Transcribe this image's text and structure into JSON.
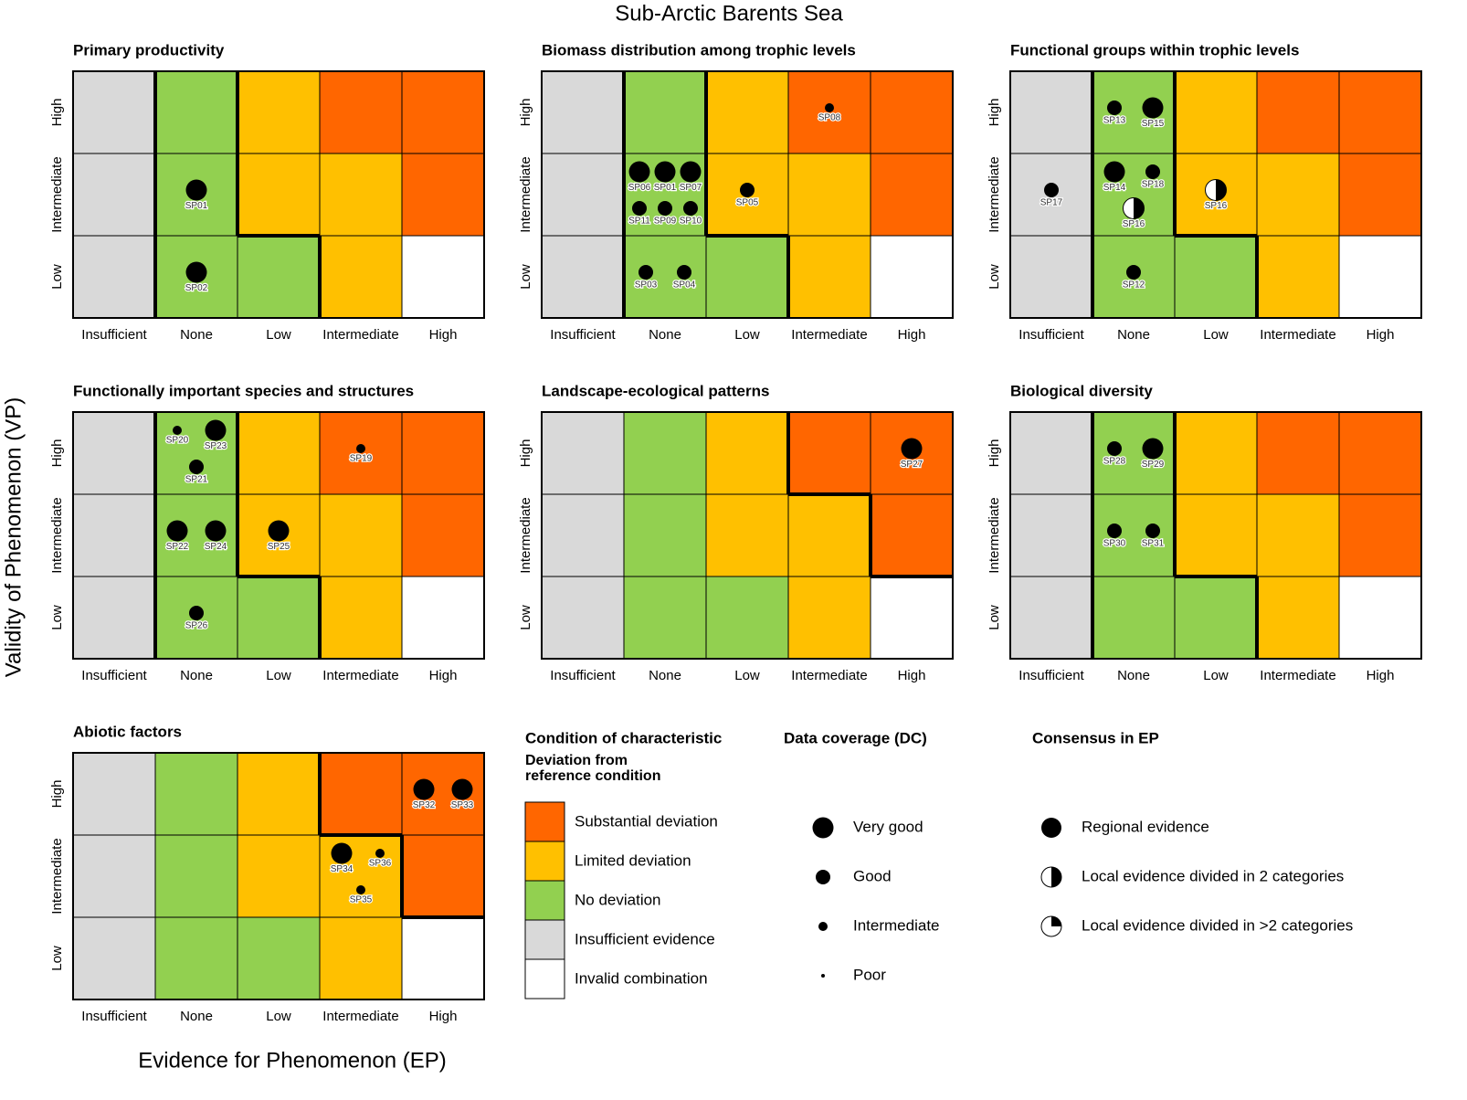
{
  "title": "Sub-Arctic Barents Sea",
  "x_axis_label": "Evidence for Phenomenon (EP)",
  "y_axis_label": "Validity of Phenomenon (VP)",
  "ep_categories": [
    "Insufficient",
    "None",
    "Low",
    "Intermediate",
    "High"
  ],
  "vp_categories": [
    "High",
    "Intermediate",
    "Low"
  ],
  "condition_matrix": [
    [
      "Insufficient evidence",
      "No deviation",
      "Limited deviation",
      "Substantial deviation",
      "Substantial deviation"
    ],
    [
      "Insufficient evidence",
      "No deviation",
      "Limited deviation",
      "Limited deviation",
      "Substantial deviation"
    ],
    [
      "Insufficient evidence",
      "No deviation",
      "No deviation",
      "Limited deviation",
      "Invalid combination"
    ]
  ],
  "legend": {
    "condition": {
      "title": "Condition of characteristic",
      "subtitle": [
        "Deviation from",
        "reference condition"
      ],
      "items": [
        {
          "label": "Substantial deviation",
          "color": "#ff6600"
        },
        {
          "label": "Limited deviation",
          "color": "#ffc000"
        },
        {
          "label": "No deviation",
          "color": "#92d050"
        },
        {
          "label": "Insufficient evidence",
          "color": "#d9d9d9"
        },
        {
          "label": "Invalid combination",
          "color": "#ffffff"
        }
      ]
    },
    "coverage": {
      "title": "Data coverage (DC)",
      "items": [
        {
          "label": "Very good"
        },
        {
          "label": "Good"
        },
        {
          "label": "Intermediate"
        },
        {
          "label": "Poor"
        }
      ]
    },
    "consensus": {
      "title": "Consensus in EP",
      "items": [
        {
          "label": "Regional evidence"
        },
        {
          "label": "Local evidence divided in 2 categories"
        },
        {
          "label": "Local evidence divided in >2 categories"
        }
      ]
    }
  },
  "panels": [
    {
      "title": "Primary productivity",
      "highlight": "No deviation",
      "points": [
        {
          "label": "SP01",
          "ep": "None",
          "vp": "Intermediate",
          "coverage": "Very good",
          "consensus": "Regional evidence"
        },
        {
          "label": "SP02",
          "ep": "None",
          "vp": "Low",
          "coverage": "Very good",
          "consensus": "Regional evidence"
        }
      ]
    },
    {
      "title": "Biomass distribution among trophic levels",
      "highlight": "No deviation",
      "points": [
        {
          "label": "SP08",
          "ep": "Intermediate",
          "vp": "High",
          "coverage": "Intermediate",
          "consensus": "Regional evidence"
        },
        {
          "label": "SP06",
          "ep": "None",
          "vp": "Intermediate",
          "coverage": "Very good",
          "consensus": "Regional evidence"
        },
        {
          "label": "SP01",
          "ep": "None",
          "vp": "Intermediate",
          "coverage": "Very good",
          "consensus": "Regional evidence"
        },
        {
          "label": "SP07",
          "ep": "None",
          "vp": "Intermediate",
          "coverage": "Very good",
          "consensus": "Regional evidence"
        },
        {
          "label": "SP11",
          "ep": "None",
          "vp": "Intermediate",
          "coverage": "Good",
          "consensus": "Regional evidence"
        },
        {
          "label": "SP09",
          "ep": "None",
          "vp": "Intermediate",
          "coverage": "Good",
          "consensus": "Regional evidence"
        },
        {
          "label": "SP10",
          "ep": "None",
          "vp": "Intermediate",
          "coverage": "Good",
          "consensus": "Regional evidence"
        },
        {
          "label": "SP05",
          "ep": "Low",
          "vp": "Intermediate",
          "coverage": "Good",
          "consensus": "Regional evidence"
        },
        {
          "label": "SP03",
          "ep": "None",
          "vp": "Low",
          "coverage": "Good",
          "consensus": "Regional evidence"
        },
        {
          "label": "SP04",
          "ep": "None",
          "vp": "Low",
          "coverage": "Good",
          "consensus": "Regional evidence"
        }
      ]
    },
    {
      "title": "Functional groups within trophic levels",
      "highlight": "No deviation",
      "points": [
        {
          "label": "SP13",
          "ep": "None",
          "vp": "High",
          "coverage": "Good",
          "consensus": "Regional evidence"
        },
        {
          "label": "SP15",
          "ep": "None",
          "vp": "High",
          "coverage": "Very good",
          "consensus": "Regional evidence"
        },
        {
          "label": "SP17",
          "ep": "Insufficient",
          "vp": "Intermediate",
          "coverage": "Good",
          "consensus": "Regional evidence"
        },
        {
          "label": "SP14",
          "ep": "None",
          "vp": "Intermediate",
          "coverage": "Very good",
          "consensus": "Regional evidence"
        },
        {
          "label": "SP18",
          "ep": "None",
          "vp": "Intermediate",
          "coverage": "Good",
          "consensus": "Regional evidence"
        },
        {
          "label": "SP16",
          "ep": "None",
          "vp": "Intermediate",
          "coverage": "Very good",
          "consensus": "Local evidence divided in 2 categories"
        },
        {
          "label": "SP16",
          "ep": "Low",
          "vp": "Intermediate",
          "coverage": "Very good",
          "consensus": "Local evidence divided in 2 categories"
        },
        {
          "label": "SP12",
          "ep": "None",
          "vp": "Low",
          "coverage": "Good",
          "consensus": "Regional evidence"
        }
      ]
    },
    {
      "title": "Functionally important species and structures",
      "highlight": "No deviation",
      "points": [
        {
          "label": "SP20",
          "ep": "None",
          "vp": "High",
          "coverage": "Intermediate",
          "consensus": "Regional evidence"
        },
        {
          "label": "SP23",
          "ep": "None",
          "vp": "High",
          "coverage": "Very good",
          "consensus": "Regional evidence"
        },
        {
          "label": "SP21",
          "ep": "None",
          "vp": "High",
          "coverage": "Good",
          "consensus": "Regional evidence"
        },
        {
          "label": "SP19",
          "ep": "Intermediate",
          "vp": "High",
          "coverage": "Intermediate",
          "consensus": "Regional evidence"
        },
        {
          "label": "SP22",
          "ep": "None",
          "vp": "Intermediate",
          "coverage": "Very good",
          "consensus": "Regional evidence"
        },
        {
          "label": "SP24",
          "ep": "None",
          "vp": "Intermediate",
          "coverage": "Very good",
          "consensus": "Regional evidence"
        },
        {
          "label": "SP25",
          "ep": "Low",
          "vp": "Intermediate",
          "coverage": "Very good",
          "consensus": "Regional evidence"
        },
        {
          "label": "SP26",
          "ep": "None",
          "vp": "Low",
          "coverage": "Good",
          "consensus": "Regional evidence"
        }
      ]
    },
    {
      "title": "Landscape-ecological patterns",
      "highlight": "Substantial deviation",
      "points": [
        {
          "label": "SP27",
          "ep": "High",
          "vp": "High",
          "coverage": "Very good",
          "consensus": "Regional evidence"
        }
      ]
    },
    {
      "title": "Biological diversity",
      "highlight": "No deviation",
      "points": [
        {
          "label": "SP28",
          "ep": "None",
          "vp": "High",
          "coverage": "Good",
          "consensus": "Regional evidence"
        },
        {
          "label": "SP29",
          "ep": "None",
          "vp": "High",
          "coverage": "Very good",
          "consensus": "Regional evidence"
        },
        {
          "label": "SP30",
          "ep": "None",
          "vp": "Intermediate",
          "coverage": "Good",
          "consensus": "Regional evidence"
        },
        {
          "label": "SP31",
          "ep": "None",
          "vp": "Intermediate",
          "coverage": "Good",
          "consensus": "Regional evidence"
        }
      ]
    },
    {
      "title": "Abiotic factors",
      "highlight": "Substantial deviation",
      "points": [
        {
          "label": "SP32",
          "ep": "High",
          "vp": "High",
          "coverage": "Very good",
          "consensus": "Regional evidence"
        },
        {
          "label": "SP33",
          "ep": "High",
          "vp": "High",
          "coverage": "Very good",
          "consensus": "Regional evidence"
        },
        {
          "label": "SP34",
          "ep": "Intermediate",
          "vp": "Intermediate",
          "coverage": "Very good",
          "consensus": "Regional evidence"
        },
        {
          "label": "SP36",
          "ep": "Intermediate",
          "vp": "Intermediate",
          "coverage": "Intermediate",
          "consensus": "Regional evidence"
        },
        {
          "label": "SP35",
          "ep": "Intermediate",
          "vp": "Intermediate",
          "coverage": "Intermediate",
          "consensus": "Regional evidence"
        }
      ]
    }
  ]
}
